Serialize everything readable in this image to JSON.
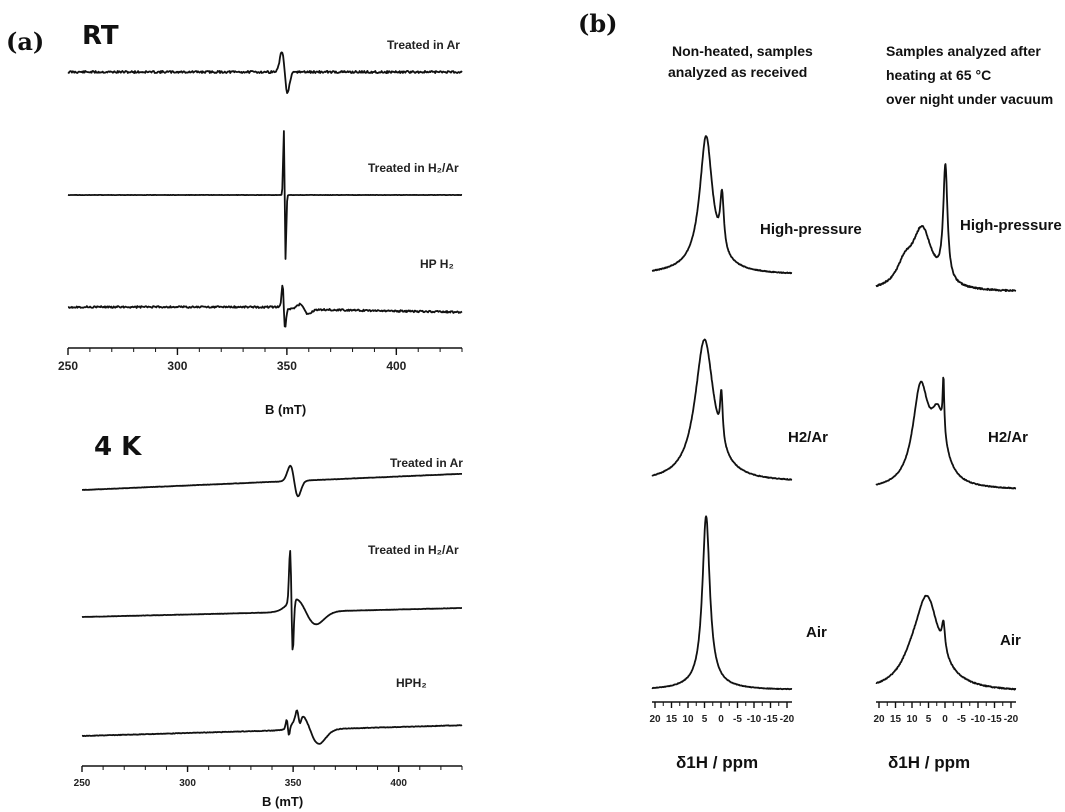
{
  "panels": {
    "a_label": "(a)",
    "b_label": "(b)"
  },
  "chart_data": [
    {
      "type": "line",
      "id": "epr-rt",
      "condition": "RT",
      "xlabel": "B (mT)",
      "xlim": [
        250,
        430
      ],
      "x_ticks": [
        250,
        300,
        350,
        400
      ],
      "y_ticks_shown": false,
      "series": [
        {
          "name": "Treated in Ar",
          "center": 349,
          "features": "derivative signal at ~349 mT, noisy baseline"
        },
        {
          "name": "Treated in H₂/Ar",
          "center": 349,
          "features": "sharp narrow derivative signal at ~349 mT, flat baseline"
        },
        {
          "name": "HP H₂",
          "center": 349,
          "features": "derivative signal at ~349 mT with shoulder near ~358 mT"
        }
      ]
    },
    {
      "type": "line",
      "id": "epr-4k",
      "condition": "4 K",
      "xlabel": "B (mT)",
      "xlim": [
        250,
        430
      ],
      "x_ticks": [
        250,
        300,
        350,
        400
      ],
      "y_ticks_shown": false,
      "series": [
        {
          "name": "Treated in Ar",
          "center": 350,
          "features": "derivative signal at ~350 mT, sloped baseline"
        },
        {
          "name": "Treated in H₂/Ar",
          "center": 349,
          "features": "intense narrow derivative at ~349 mT with broad component"
        },
        {
          "name": "HPH₂",
          "center": 350,
          "features": "split features 347-353 mT with broad negative lobe ~360 mT"
        }
      ]
    },
    {
      "type": "line",
      "id": "nmr-nonheated",
      "header": [
        "Non-heated, samples",
        "analyzed as received"
      ],
      "xlabel": "δ1H / ppm",
      "xlim": [
        20,
        -20
      ],
      "x_ticks": [
        20,
        15,
        10,
        5,
        0,
        -5,
        -10,
        -15,
        -20
      ],
      "series": [
        {
          "name": "High-pressure",
          "peaks_ppm": [
            5,
            0
          ]
        },
        {
          "name": "H2/Ar",
          "peaks_ppm": [
            5,
            0
          ]
        },
        {
          "name": "Air",
          "peaks_ppm": [
            5
          ]
        }
      ]
    },
    {
      "type": "line",
      "id": "nmr-heated",
      "header": [
        "Samples analyzed after",
        "heating at 65 °C",
        "over night under vacuum"
      ],
      "xlabel": "δ1H / ppm",
      "xlim": [
        20,
        -20
      ],
      "x_ticks": [
        20,
        15,
        10,
        5,
        0,
        -5,
        -10,
        -15,
        -20
      ],
      "series": [
        {
          "name": "High-pressure",
          "peaks_ppm": [
            7,
            0
          ]
        },
        {
          "name": "H2/Ar",
          "peaks_ppm": [
            7,
            1
          ]
        },
        {
          "name": "Air",
          "peaks_ppm": [
            5,
            1
          ]
        }
      ]
    }
  ]
}
